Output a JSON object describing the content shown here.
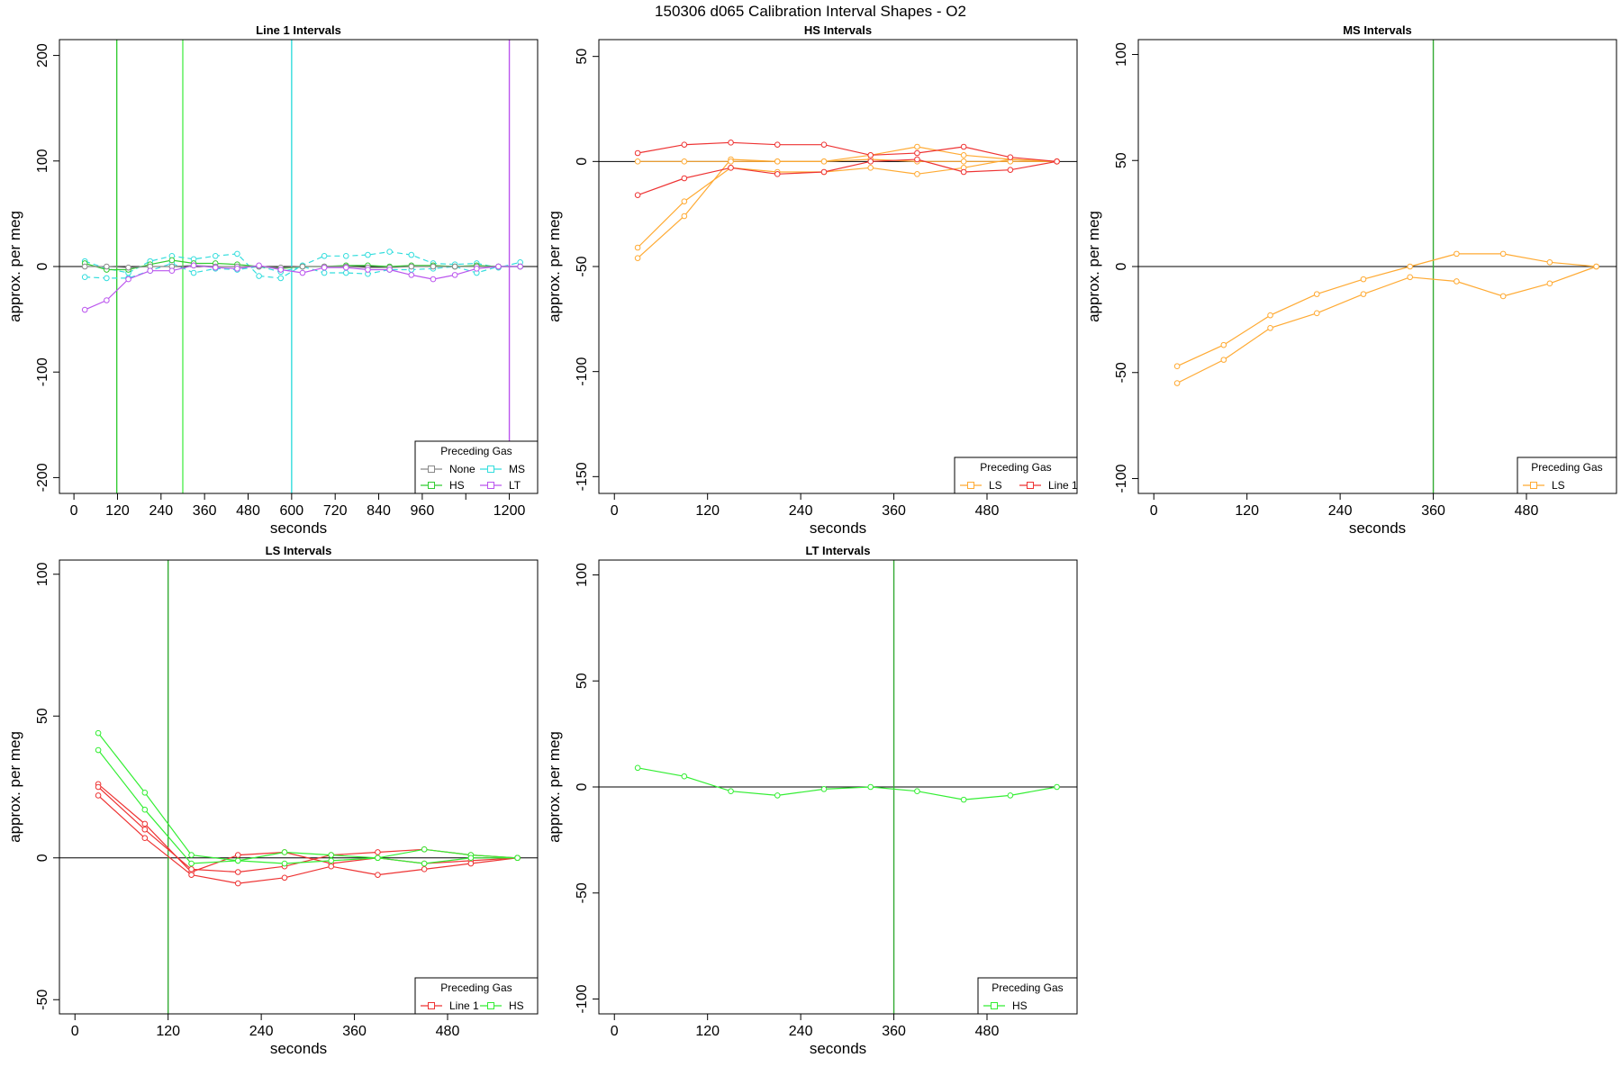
{
  "page_title": "150306   d065   Calibration Interval Shapes - O2",
  "chart_data": [
    {
      "type": "line",
      "title": "Line 1 Intervals",
      "xlabel": "seconds",
      "ylabel": "approx. per meg",
      "xlim": [
        -40,
        1278
      ],
      "ylim": [
        -215,
        215
      ],
      "xticks": [
        0,
        120,
        240,
        360,
        480,
        600,
        720,
        840,
        960,
        1200
      ],
      "xtick_labels": [
        "0",
        "120",
        "240",
        "360",
        "480",
        "600",
        "720",
        "840",
        "960",
        "1200"
      ],
      "xtick_marks": [
        0,
        120,
        240,
        360,
        480,
        600,
        720,
        840,
        960,
        1080,
        1200
      ],
      "yticks": [
        -200,
        -100,
        0,
        100,
        200
      ],
      "hline": 0,
      "vlines": [
        {
          "x": 118,
          "color": "#33cc33"
        },
        {
          "x": 300,
          "color": "#55ee55"
        },
        {
          "x": 600,
          "color": "#33dddd"
        },
        {
          "x": 1200,
          "color": "#bb55ee"
        }
      ],
      "legend": {
        "title": "Preceding Gas",
        "position": "bottom-right",
        "columns": 2,
        "entries": [
          {
            "label": "None",
            "color": "#888888"
          },
          {
            "label": "MS",
            "color": "#33dddd"
          },
          {
            "label": "HS",
            "color": "#33cc33"
          },
          {
            "label": "LT",
            "color": "#bb55ee"
          }
        ]
      },
      "series": [
        {
          "name": "MS",
          "color": "#33dddd",
          "dashed": true,
          "x": [
            30,
            90,
            150,
            210,
            270,
            330,
            390,
            450,
            510,
            570,
            630,
            690,
            750,
            810,
            870,
            930,
            990,
            1050,
            1110,
            1170,
            1230
          ],
          "y": [
            5,
            -2,
            -6,
            5,
            10,
            7,
            10,
            12,
            -9,
            -11,
            1,
            10,
            10,
            11,
            14,
            11,
            3,
            2,
            3,
            -1,
            4
          ]
        },
        {
          "name": "MS",
          "color": "#33dddd",
          "dashed": true,
          "x": [
            30,
            90,
            150,
            210,
            270,
            330,
            390,
            450,
            510,
            570,
            630,
            690,
            750,
            810,
            870,
            930,
            990,
            1050,
            1110,
            1170,
            1230
          ],
          "y": [
            -10,
            -11,
            -11,
            -4,
            3,
            -6,
            -2,
            -3,
            0,
            -5,
            0,
            -6,
            -6,
            -7,
            -3,
            -3,
            -2,
            0,
            -6,
            0,
            0
          ]
        },
        {
          "name": "HS",
          "color": "#33cc33",
          "dashed": false,
          "x": [
            30,
            90,
            150,
            210,
            270,
            330,
            390,
            450,
            510,
            570,
            630,
            690,
            750,
            810,
            870,
            930,
            990,
            1050,
            1110,
            1170,
            1230
          ],
          "y": [
            3,
            -3,
            -3,
            2,
            6,
            3,
            3,
            2,
            0,
            -2,
            0,
            0,
            1,
            1,
            0,
            1,
            1,
            0,
            1,
            0,
            0
          ]
        },
        {
          "name": "None",
          "color": "#888888",
          "dashed": false,
          "x": [
            30,
            90,
            150,
            210,
            270,
            330,
            390,
            450,
            510,
            570,
            630,
            690,
            750,
            810,
            870,
            930,
            990,
            1050,
            1110,
            1170,
            1230
          ],
          "y": [
            0,
            0,
            -1,
            0,
            0,
            1,
            0,
            0,
            0,
            -1,
            0,
            0,
            0,
            -1,
            -1,
            0,
            0,
            0,
            0,
            0,
            0
          ]
        },
        {
          "name": "LT",
          "color": "#bb55ee",
          "dashed": false,
          "x": [
            30,
            90,
            150,
            210,
            270,
            330,
            390,
            450,
            510,
            570,
            630,
            690,
            750,
            810,
            870,
            930,
            990,
            1050,
            1110,
            1170,
            1230
          ],
          "y": [
            -41,
            -32,
            -12,
            -4,
            -4,
            1,
            -1,
            -2,
            1,
            -3,
            -6,
            -1,
            -1,
            -3,
            -3,
            -8,
            -12,
            -8,
            -2,
            0,
            0
          ]
        }
      ]
    },
    {
      "type": "line",
      "title": "HS Intervals",
      "xlabel": "seconds",
      "ylabel": "approx. per meg",
      "xlim": [
        -20,
        596
      ],
      "ylim": [
        -158,
        58
      ],
      "xticks": [
        0,
        120,
        240,
        360,
        480
      ],
      "xtick_labels": [
        "0",
        "120",
        "240",
        "360",
        "480"
      ],
      "xtick_marks": [
        0,
        120,
        240,
        360,
        480
      ],
      "yticks": [
        -150,
        -100,
        -50,
        0,
        50
      ],
      "hline": 0,
      "vlines": [],
      "legend": {
        "title": "Preceding Gas",
        "position": "bottom-right",
        "columns": 2,
        "entries": [
          {
            "label": "LS",
            "color": "#ffaa33"
          },
          {
            "label": "Line 1",
            "color": "#ee3333"
          }
        ]
      },
      "series": [
        {
          "name": "LS",
          "color": "#ffaa33",
          "dashed": false,
          "x": [
            30,
            90,
            150,
            210,
            270,
            330,
            390,
            450,
            510,
            570
          ],
          "y": [
            -46,
            -26,
            1,
            0,
            0,
            3,
            7,
            3,
            1,
            0
          ]
        },
        {
          "name": "LS",
          "color": "#ffaa33",
          "dashed": false,
          "x": [
            30,
            90,
            150,
            210,
            270,
            330,
            390,
            450,
            510,
            570
          ],
          "y": [
            -41,
            -19,
            -3,
            -5,
            -5,
            -3,
            -6,
            -3,
            1,
            0
          ]
        },
        {
          "name": "LS",
          "color": "#ffaa33",
          "dashed": false,
          "x": [
            30,
            90,
            150,
            210,
            270,
            330,
            390,
            450,
            510,
            570
          ],
          "y": [
            0,
            0,
            0,
            0,
            0,
            1,
            0,
            0,
            0,
            0
          ]
        },
        {
          "name": "Line 1",
          "color": "#ee3333",
          "dashed": false,
          "x": [
            30,
            90,
            150,
            210,
            270,
            330,
            390,
            450,
            510,
            570
          ],
          "y": [
            4,
            8,
            9,
            8,
            8,
            3,
            4,
            7,
            2,
            0
          ]
        },
        {
          "name": "Line 1",
          "color": "#ee3333",
          "dashed": false,
          "x": [
            30,
            90,
            150,
            210,
            270,
            330,
            390,
            450,
            510,
            570
          ],
          "y": [
            -16,
            -8,
            -3,
            -6,
            -5,
            0,
            1,
            -5,
            -4,
            0
          ]
        }
      ]
    },
    {
      "type": "line",
      "title": "MS Intervals",
      "xlabel": "seconds",
      "ylabel": "approx. per meg",
      "xlim": [
        -20,
        596
      ],
      "ylim": [
        -107,
        107
      ],
      "xticks": [
        0,
        120,
        240,
        360,
        480
      ],
      "xtick_labels": [
        "0",
        "120",
        "240",
        "360",
        "480"
      ],
      "xtick_marks": [
        0,
        120,
        240,
        360,
        480
      ],
      "yticks": [
        -100,
        -50,
        0,
        50,
        100
      ],
      "hline": 0,
      "vlines": [
        {
          "x": 360,
          "color": "#33aa33"
        }
      ],
      "legend": {
        "title": "Preceding Gas",
        "position": "bottom-right",
        "columns": 1,
        "entries": [
          {
            "label": "LS",
            "color": "#ffaa33"
          }
        ]
      },
      "series": [
        {
          "name": "LS",
          "color": "#ffaa33",
          "dashed": false,
          "x": [
            30,
            90,
            150,
            210,
            270,
            330,
            390,
            450,
            510,
            570
          ],
          "y": [
            -47,
            -37,
            -23,
            -13,
            -6,
            0,
            6,
            6,
            2,
            0
          ]
        },
        {
          "name": "LS",
          "color": "#ffaa33",
          "dashed": false,
          "x": [
            30,
            90,
            150,
            210,
            270,
            330,
            390,
            450,
            510,
            570
          ],
          "y": [
            -55,
            -44,
            -29,
            -22,
            -13,
            -5,
            -7,
            -14,
            -8,
            0
          ]
        }
      ]
    },
    {
      "type": "line",
      "title": "LS Intervals",
      "xlabel": "seconds",
      "ylabel": "approx. per meg",
      "xlim": [
        -20,
        596
      ],
      "ylim": [
        -55,
        105
      ],
      "xticks": [
        0,
        120,
        240,
        360,
        480
      ],
      "xtick_labels": [
        "0",
        "120",
        "240",
        "360",
        "480"
      ],
      "xtick_marks": [
        0,
        120,
        240,
        360,
        480
      ],
      "yticks": [
        -50,
        0,
        50,
        100
      ],
      "hline": 0,
      "vlines": [
        {
          "x": 120,
          "color": "#33aa33"
        }
      ],
      "legend": {
        "title": "Preceding Gas",
        "position": "bottom-right",
        "columns": 2,
        "entries": [
          {
            "label": "Line 1",
            "color": "#ee3333"
          },
          {
            "label": "HS",
            "color": "#33ee33"
          }
        ]
      },
      "series": [
        {
          "name": "Line 1",
          "color": "#ee3333",
          "dashed": false,
          "x": [
            30,
            90,
            150,
            210,
            270,
            330,
            390,
            450,
            510,
            570
          ],
          "y": [
            26,
            12,
            -5,
            1,
            2,
            -2,
            0,
            -2,
            -1,
            0
          ]
        },
        {
          "name": "Line 1",
          "color": "#ee3333",
          "dashed": false,
          "x": [
            30,
            90,
            150,
            210,
            270,
            330,
            390,
            450,
            510,
            570
          ],
          "y": [
            22,
            7,
            -6,
            -9,
            -7,
            -3,
            -6,
            -4,
            -2,
            0
          ]
        },
        {
          "name": "Line 1",
          "color": "#ee3333",
          "dashed": false,
          "x": [
            30,
            90,
            150,
            210,
            270,
            330,
            390,
            450,
            510,
            570
          ],
          "y": [
            25,
            10,
            -4,
            -5,
            -3,
            1,
            2,
            3,
            1,
            0
          ]
        },
        {
          "name": "HS",
          "color": "#33ee33",
          "dashed": false,
          "x": [
            30,
            90,
            150,
            210,
            270,
            330,
            390,
            450,
            510,
            570
          ],
          "y": [
            44,
            23,
            1,
            -1,
            2,
            1,
            0,
            3,
            1,
            0
          ]
        },
        {
          "name": "HS",
          "color": "#33ee33",
          "dashed": false,
          "x": [
            30,
            90,
            150,
            210,
            270,
            330,
            390,
            450,
            510,
            570
          ],
          "y": [
            38,
            17,
            -2,
            -1,
            -2,
            -1,
            0,
            -2,
            0,
            0
          ]
        }
      ]
    },
    {
      "type": "line",
      "title": "LT Intervals",
      "xlabel": "seconds",
      "ylabel": "approx. per meg",
      "xlim": [
        -20,
        596
      ],
      "ylim": [
        -107,
        107
      ],
      "xticks": [
        0,
        120,
        240,
        360,
        480
      ],
      "xtick_labels": [
        "0",
        "120",
        "240",
        "360",
        "480"
      ],
      "xtick_marks": [
        0,
        120,
        240,
        360,
        480
      ],
      "yticks": [
        -100,
        -50,
        0,
        50,
        100
      ],
      "hline": 0,
      "vlines": [
        {
          "x": 360,
          "color": "#33aa33"
        }
      ],
      "legend": {
        "title": "Preceding Gas",
        "position": "bottom-right",
        "columns": 1,
        "entries": [
          {
            "label": "HS",
            "color": "#33ee33"
          }
        ]
      },
      "series": [
        {
          "name": "HS",
          "color": "#33ee33",
          "dashed": false,
          "x": [
            30,
            90,
            150,
            210,
            270,
            330,
            390,
            450,
            510,
            570
          ],
          "y": [
            9,
            5,
            -2,
            -4,
            -1,
            0,
            -2,
            -6,
            -4,
            0
          ]
        }
      ]
    }
  ]
}
